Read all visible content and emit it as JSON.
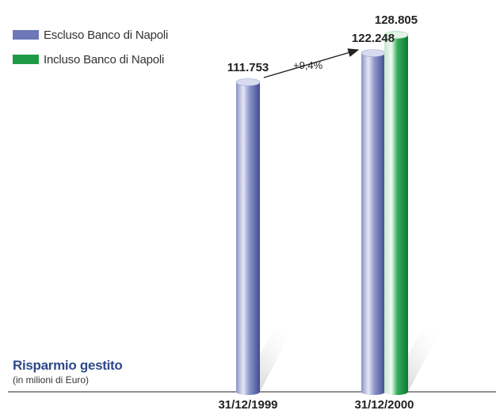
{
  "colors": {
    "escluso": "#6c78b8",
    "incluso": "#1f9a46",
    "axis": "#222222",
    "text": "#222222"
  },
  "legend": [
    {
      "label": "Escluso Banco di Napoli",
      "color": "#6c78b8"
    },
    {
      "label": "Incluso Banco di Napoli",
      "color": "#1f9a46"
    }
  ],
  "title": "Risparmio gestito",
  "subtitle": "(in milioni di Euro)",
  "annotation": "+9,4%",
  "chart_data": {
    "type": "bar",
    "title": "Risparmio gestito",
    "subtitle": "(in milioni di Euro)",
    "categories": [
      "31/12/1999",
      "31/12/2000"
    ],
    "series": [
      {
        "name": "Escluso Banco di Napoli",
        "values": [
          111753,
          122248
        ],
        "labels": [
          "111.753",
          "122.248"
        ]
      },
      {
        "name": "Incluso Banco di Napoli",
        "values": [
          null,
          128805
        ],
        "labels": [
          "",
          "128.805"
        ]
      }
    ],
    "annotations": [
      {
        "text": "+9,4%",
        "from": "31/12/1999",
        "to": "31/12/2000"
      }
    ],
    "ylim": [
      0,
      135000
    ],
    "grid": false,
    "legend_position": "top-left"
  }
}
